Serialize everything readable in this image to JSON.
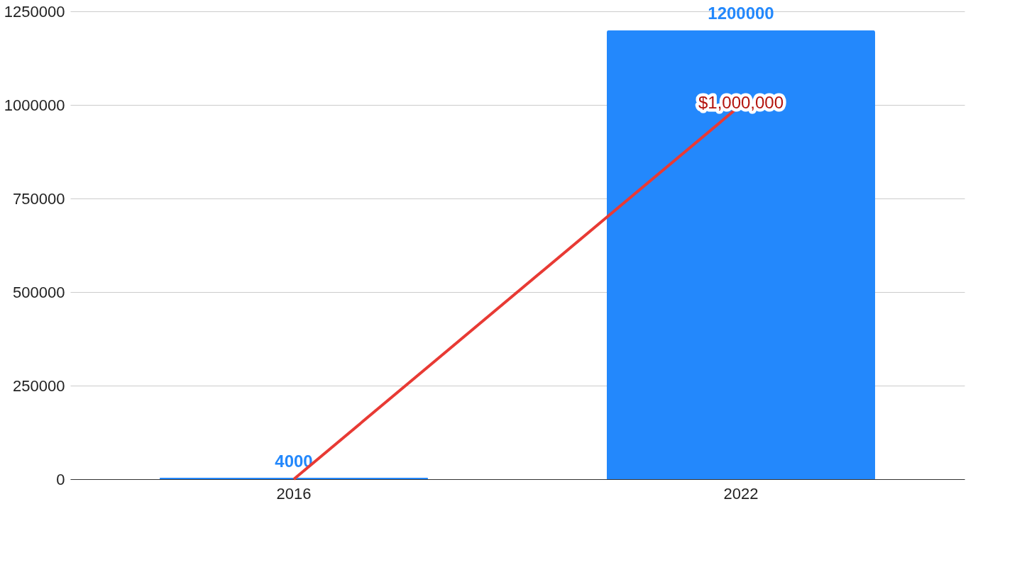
{
  "chart_data": {
    "type": "bar",
    "categories": [
      "2016",
      "2022"
    ],
    "series": [
      {
        "color": "#2388fc",
        "values": [
          4000,
          1200000
        ],
        "value_labels": [
          "4000",
          "1200000"
        ]
      },
      {
        "type": "line",
        "color": "#e83a34",
        "values": [
          0,
          1000000
        ],
        "value_labels": [
          null,
          "$1,000,000"
        ]
      }
    ],
    "ylim": [
      0,
      1250000
    ],
    "yticks": [
      0,
      250000,
      500000,
      750000,
      1000000,
      1250000
    ],
    "grid": "y",
    "marker": "none",
    "line_style": "solid"
  }
}
